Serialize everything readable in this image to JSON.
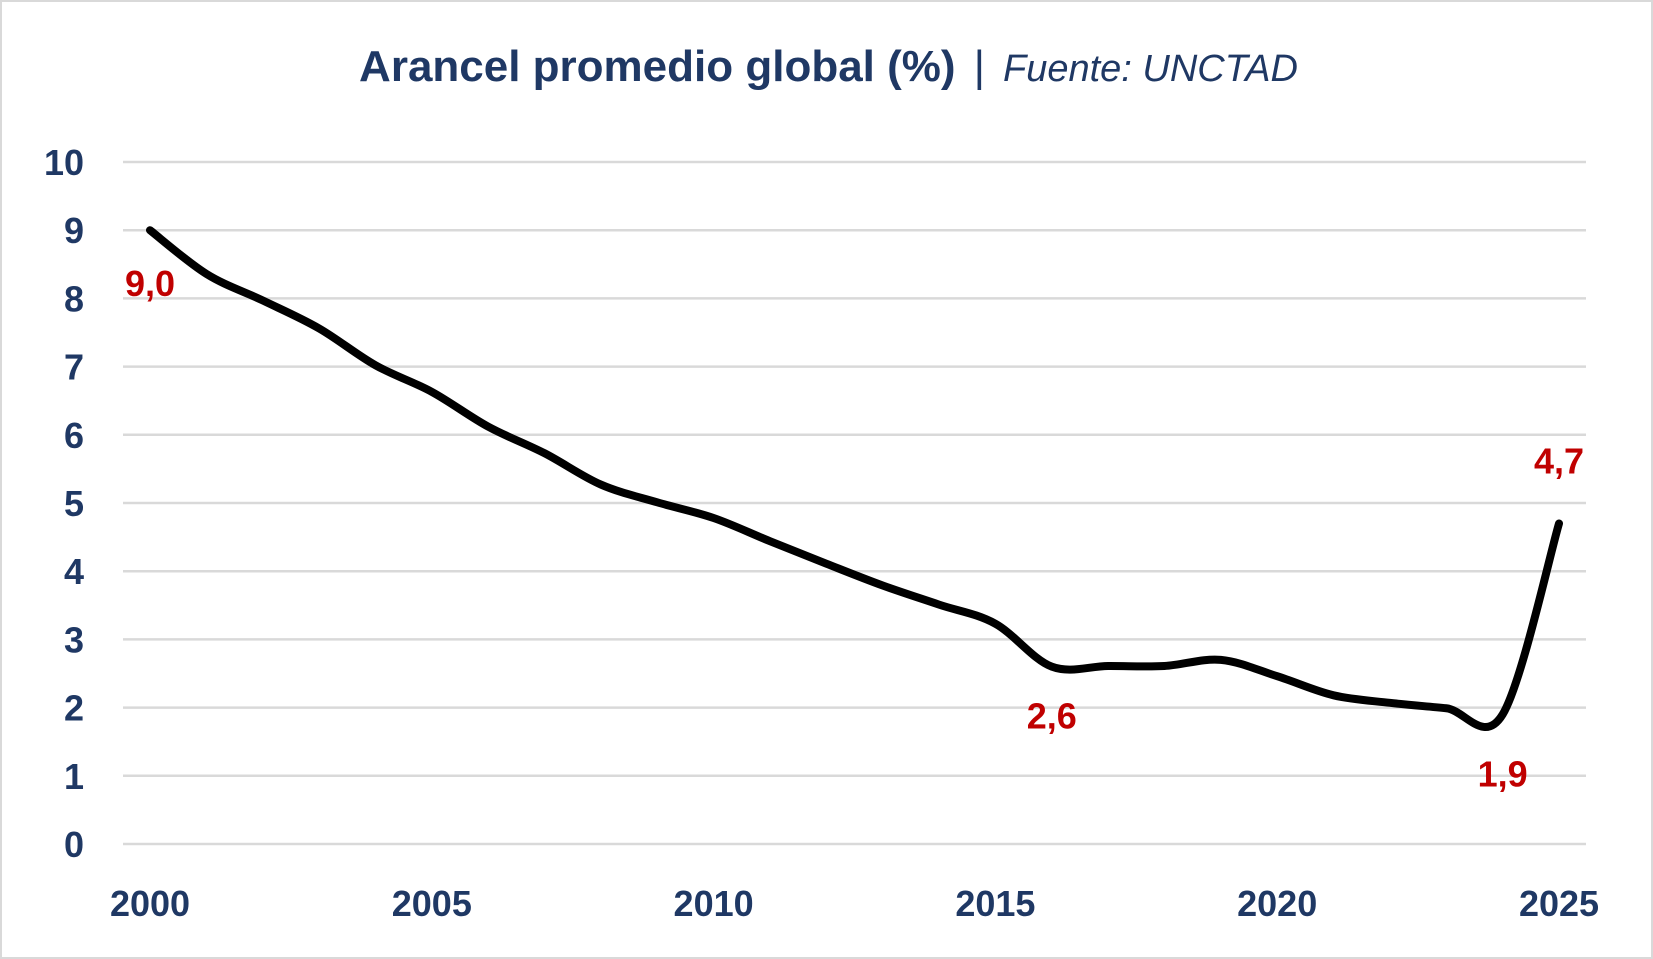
{
  "chart_data": {
    "type": "line",
    "title": "Arancel promedio global (%)",
    "subtitle": "Fuente: UNCTAD",
    "xlabel": "",
    "ylabel": "",
    "x": [
      2000,
      2001,
      2002,
      2003,
      2004,
      2005,
      2006,
      2007,
      2008,
      2009,
      2010,
      2011,
      2012,
      2013,
      2014,
      2015,
      2016,
      2017,
      2018,
      2019,
      2020,
      2021,
      2022,
      2023,
      2024,
      2025
    ],
    "values": [
      9.0,
      8.36,
      7.97,
      7.56,
      7.02,
      6.63,
      6.12,
      5.73,
      5.27,
      5.01,
      4.78,
      4.44,
      4.11,
      3.79,
      3.51,
      3.23,
      2.6,
      2.61,
      2.61,
      2.7,
      2.46,
      2.18,
      2.07,
      1.99,
      1.9,
      4.7
    ],
    "ylim": [
      0,
      10
    ],
    "xlim": [
      2000,
      2025
    ],
    "yticks": [
      "0",
      "1",
      "2",
      "3",
      "4",
      "5",
      "6",
      "7",
      "8",
      "9",
      "10"
    ],
    "xticks": [
      "2000",
      "2005",
      "2010",
      "2015",
      "2020",
      "2025"
    ],
    "data_labels": [
      {
        "year": 2000,
        "text": "9,0"
      },
      {
        "year": 2016,
        "text": "2,6"
      },
      {
        "year": 2024,
        "text": "1,9"
      },
      {
        "year": 2025,
        "text": "4,7"
      }
    ],
    "grid": true,
    "line_color": "#000000",
    "axis_text_color": "#1f3864",
    "label_color": "#c00000",
    "grid_color": "#d9d9d9"
  }
}
